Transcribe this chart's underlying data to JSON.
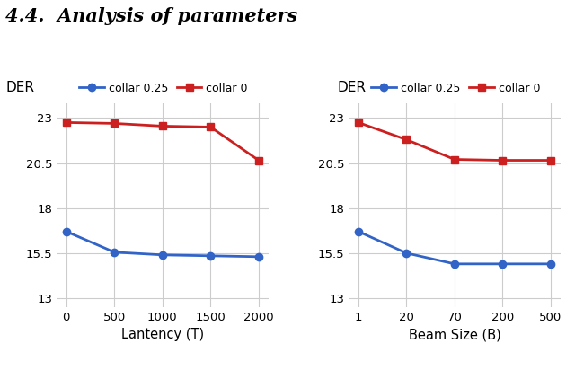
{
  "title": "4.4.  Analysis of parameters",
  "title_fontsize": 15,
  "title_fontweight": "bold",
  "left_xlabel": "Lantency (T)",
  "right_xlabel": "Beam Size (B)",
  "ylabel": "DER",
  "left_x": [
    0,
    500,
    1000,
    1500,
    2000
  ],
  "left_blue": [
    16.7,
    15.55,
    15.4,
    15.35,
    15.3
  ],
  "left_red": [
    22.75,
    22.7,
    22.55,
    22.5,
    20.65
  ],
  "right_x_labels": [
    "1",
    "20",
    "70",
    "200",
    "500"
  ],
  "right_blue": [
    16.7,
    15.5,
    14.9,
    14.9,
    14.9
  ],
  "right_red": [
    22.75,
    21.8,
    20.7,
    20.65,
    20.65
  ],
  "blue_color": "#3264c8",
  "red_color": "#cc2020",
  "yticks": [
    13,
    15.5,
    18,
    20.5,
    23
  ],
  "ylim": [
    12.5,
    23.8
  ],
  "legend_blue_label": "collar 0.25",
  "legend_red_label": "collar 0",
  "grid_color": "#cccccc",
  "bg_color": "#ffffff"
}
